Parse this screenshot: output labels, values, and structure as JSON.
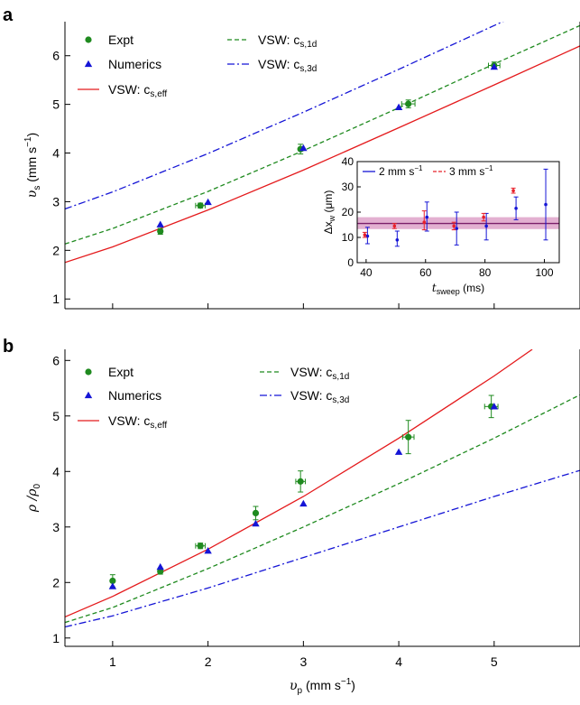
{
  "colors": {
    "green": "#1f8a1f",
    "blue": "#1515d6",
    "red": "#e41a1c",
    "inset_red": "#e8202a",
    "band": "#c0509a"
  },
  "chart_data": [
    {
      "panel": "a",
      "type": "scatter",
      "xlim": [
        0.5,
        5.9
      ],
      "ylim": [
        0.8,
        6.7
      ],
      "xticks": [
        1,
        2,
        3,
        4,
        5
      ],
      "yticks": [
        1,
        2,
        3,
        4,
        5,
        6
      ],
      "xlabel": "",
      "ylabel": "υs (mm s−1)",
      "ylabel_parts": {
        "sym": "υ",
        "sub": "s",
        "unit_open": " (mm s",
        "sup": "−1",
        "unit_close": ")"
      },
      "legend": [
        {
          "label": "Expt",
          "marker": "circle",
          "color": "green"
        },
        {
          "label": "Numerics",
          "marker": "triangle",
          "color": "blue"
        },
        {
          "label": "VSW: cs,eff",
          "line": "solid",
          "color": "red",
          "sym": "VSW: c",
          "sub": "s,eff"
        },
        {
          "label": "VSW: cs,1d",
          "line": "dashed",
          "color": "green",
          "sym": "VSW: c",
          "sub": "s,1d"
        },
        {
          "label": "VSW: cs,3d",
          "line": "dashdot",
          "color": "blue",
          "sym": "VSW: c",
          "sub": "s,3d"
        }
      ],
      "series": [
        {
          "name": "Expt",
          "marker": "circle",
          "color": "green",
          "x": [
            1.5,
            1.92,
            2.97,
            4.1,
            5.0
          ],
          "y": [
            2.39,
            2.92,
            4.08,
            5.01,
            5.8
          ],
          "yerr": [
            0.06,
            0.05,
            0.1,
            0.08,
            0.07
          ],
          "xerr": [
            0.0,
            0.05,
            0.0,
            0.07,
            0.06
          ]
        },
        {
          "name": "Numerics",
          "marker": "triangle",
          "color": "blue",
          "x": [
            1.5,
            2.0,
            3.0,
            4.0,
            5.0
          ],
          "y": [
            2.53,
            2.99,
            4.1,
            4.94,
            5.77
          ]
        },
        {
          "name": "VSW: cs,eff",
          "line": "solid",
          "color": "red",
          "x": [
            0.5,
            1.0,
            2.0,
            3.0,
            4.0,
            5.0,
            5.9
          ],
          "y": [
            1.75,
            2.07,
            2.83,
            3.65,
            4.52,
            5.4,
            6.2
          ]
        },
        {
          "name": "VSW: cs,1d",
          "line": "dashed",
          "color": "green",
          "x": [
            0.5,
            1.0,
            2.0,
            3.0,
            4.0,
            5.0,
            5.9
          ],
          "y": [
            2.13,
            2.45,
            3.21,
            4.05,
            4.93,
            5.83,
            6.62
          ]
        },
        {
          "name": "VSW: cs,3d",
          "line": "dashdot",
          "color": "blue",
          "x": [
            0.5,
            1.0,
            2.0,
            3.0,
            4.0,
            5.0,
            5.2
          ],
          "y": [
            2.85,
            3.2,
            3.99,
            4.84,
            5.72,
            6.62,
            6.8
          ]
        }
      ]
    },
    {
      "panel": "a-inset",
      "type": "scatter",
      "xlim": [
        37,
        105
      ],
      "ylim": [
        0,
        40
      ],
      "xticks": [
        40,
        60,
        80,
        100
      ],
      "yticks": [
        0,
        10,
        20,
        30,
        40
      ],
      "xlabel": "tsweep (ms)",
      "xlabel_parts": {
        "sym": "t",
        "sub": "sweep",
        "unit": " (ms)"
      },
      "ylabel": "Δxw (μm)",
      "ylabel_parts": {
        "sym": "Δx",
        "sub": "w",
        "unit": " (μm)"
      },
      "legend": [
        {
          "label": "2 mm s−1",
          "line": "solid",
          "color": "blue",
          "text": "2 mm s",
          "sup": "−1"
        },
        {
          "label": "3 mm s−1",
          "line": "dashed",
          "color": "inset_red",
          "text": "3 mm s",
          "sup": "−1"
        }
      ],
      "band": {
        "center": 15.5,
        "low": 13.3,
        "high": 18.0
      },
      "series": [
        {
          "name": "2 mm s−1",
          "color": "blue",
          "x": [
            40,
            50,
            60,
            70,
            80,
            90,
            100
          ],
          "y": [
            10.5,
            9.0,
            18.0,
            13.5,
            14.5,
            21.5,
            23.0
          ],
          "ylow": [
            7.5,
            6.5,
            12.5,
            7.0,
            9.0,
            17.0,
            9.0
          ],
          "yhigh": [
            14.0,
            12.5,
            24.0,
            20.0,
            19.5,
            26.0,
            37.0
          ]
        },
        {
          "name": "3 mm s−1",
          "color": "inset_red",
          "x": [
            40,
            50,
            60,
            70,
            80,
            90
          ],
          "y": [
            11.0,
            14.5,
            16.0,
            14.5,
            18.0,
            28.5
          ],
          "ylow": [
            10.0,
            13.5,
            13.0,
            13.0,
            16.5,
            27.5
          ],
          "yhigh": [
            12.0,
            15.5,
            20.5,
            16.0,
            19.5,
            29.5
          ]
        }
      ]
    },
    {
      "panel": "b",
      "type": "scatter",
      "xlim": [
        0.5,
        5.9
      ],
      "ylim": [
        0.85,
        6.2
      ],
      "xticks": [
        1,
        2,
        3,
        4,
        5
      ],
      "yticks": [
        1,
        2,
        3,
        4,
        5,
        6
      ],
      "xlabel": "υp (mm s−1)",
      "xlabel_parts": {
        "sym": "υ",
        "sub": "p",
        "unit_open": " (mm s",
        "sup": "−1",
        "unit_close": ")"
      },
      "ylabel": "ρ/ρ0",
      "ylabel_parts": {
        "sym": "ρ /ρ",
        "sub": "0"
      },
      "legend": [
        {
          "label": "Expt",
          "marker": "circle",
          "color": "green"
        },
        {
          "label": "Numerics",
          "marker": "triangle",
          "color": "blue"
        },
        {
          "label": "VSW: cs,eff",
          "line": "solid",
          "color": "red",
          "sym": "VSW: c",
          "sub": "s,eff"
        },
        {
          "label": "VSW: cs,1d",
          "line": "dashed",
          "color": "green",
          "sym": "VSW: c",
          "sub": "s,1d"
        },
        {
          "label": "VSW: cs,3d",
          "line": "dashdot",
          "color": "blue",
          "sym": "VSW: c",
          "sub": "s,3d"
        }
      ],
      "series": [
        {
          "name": "Expt",
          "marker": "circle",
          "color": "green",
          "x": [
            1.0,
            1.5,
            1.92,
            2.5,
            2.97,
            4.1,
            4.97
          ],
          "y": [
            2.03,
            2.2,
            2.66,
            3.25,
            3.82,
            4.62,
            5.17
          ],
          "yerr": [
            0.11,
            0.05,
            0.05,
            0.12,
            0.19,
            0.3,
            0.2
          ],
          "xerr": [
            0.0,
            0.0,
            0.05,
            0.0,
            0.05,
            0.06,
            0.07
          ]
        },
        {
          "name": "Numerics",
          "marker": "triangle",
          "color": "blue",
          "x": [
            1.0,
            1.5,
            2.0,
            2.5,
            3.0,
            4.0,
            5.0
          ],
          "y": [
            1.93,
            2.28,
            2.57,
            3.06,
            3.42,
            4.35,
            5.17
          ]
        },
        {
          "name": "VSW: cs,eff",
          "line": "solid",
          "color": "red",
          "x": [
            0.5,
            1.0,
            2.0,
            3.0,
            4.0,
            5.0,
            5.4
          ],
          "y": [
            1.38,
            1.75,
            2.6,
            3.55,
            4.6,
            5.72,
            6.2
          ]
        },
        {
          "name": "VSW: cs,1d",
          "line": "dashed",
          "color": "green",
          "x": [
            0.5,
            1.0,
            2.0,
            3.0,
            4.0,
            5.0,
            5.9
          ],
          "y": [
            1.28,
            1.55,
            2.25,
            3.0,
            3.78,
            4.6,
            5.38
          ]
        },
        {
          "name": "VSW: cs,3d",
          "line": "dashdot",
          "color": "blue",
          "x": [
            0.5,
            1.0,
            2.0,
            3.0,
            4.0,
            5.0,
            5.9
          ],
          "y": [
            1.2,
            1.4,
            1.9,
            2.45,
            3.0,
            3.55,
            4.02
          ]
        }
      ]
    }
  ],
  "panels": {
    "a_letter": "a",
    "b_letter": "b"
  }
}
